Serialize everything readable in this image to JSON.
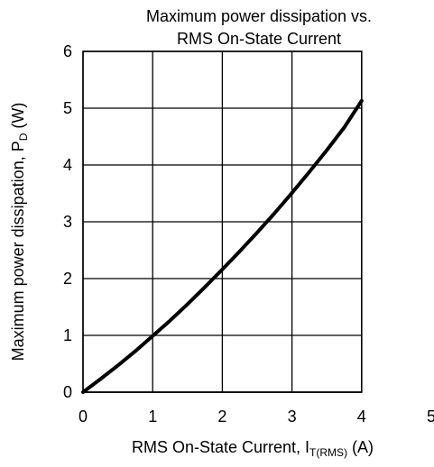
{
  "chart_data": {
    "type": "line",
    "title_lines": [
      "Maximum power dissipation vs.",
      "RMS On-State Current"
    ],
    "ylabel": {
      "main": "Maximum power dissipation, P",
      "sub": "D",
      "unit": " (W)"
    },
    "xlabel": {
      "main": "RMS On-State Current, I",
      "sub": "T(RMS)",
      "unit": " (A)"
    },
    "xlim": [
      0,
      5
    ],
    "ylim": [
      0,
      6
    ],
    "x_ticks": [
      "0",
      "1",
      "2",
      "3",
      "4",
      "5"
    ],
    "y_ticks": [
      "0",
      "1",
      "2",
      "3",
      "4",
      "5",
      "6"
    ],
    "grid": true,
    "series": [
      {
        "color": "#000000",
        "x": [
          0,
          0.25,
          0.5,
          0.75,
          1.0,
          1.25,
          1.5,
          1.75,
          2.0,
          2.25,
          2.5,
          2.75,
          3.0,
          3.25,
          3.5,
          3.75,
          4.0
        ],
        "y": [
          0,
          0.23,
          0.47,
          0.72,
          0.99,
          1.26,
          1.55,
          1.85,
          2.16,
          2.48,
          2.81,
          3.15,
          3.51,
          3.88,
          4.26,
          4.66,
          5.13
        ]
      }
    ]
  }
}
